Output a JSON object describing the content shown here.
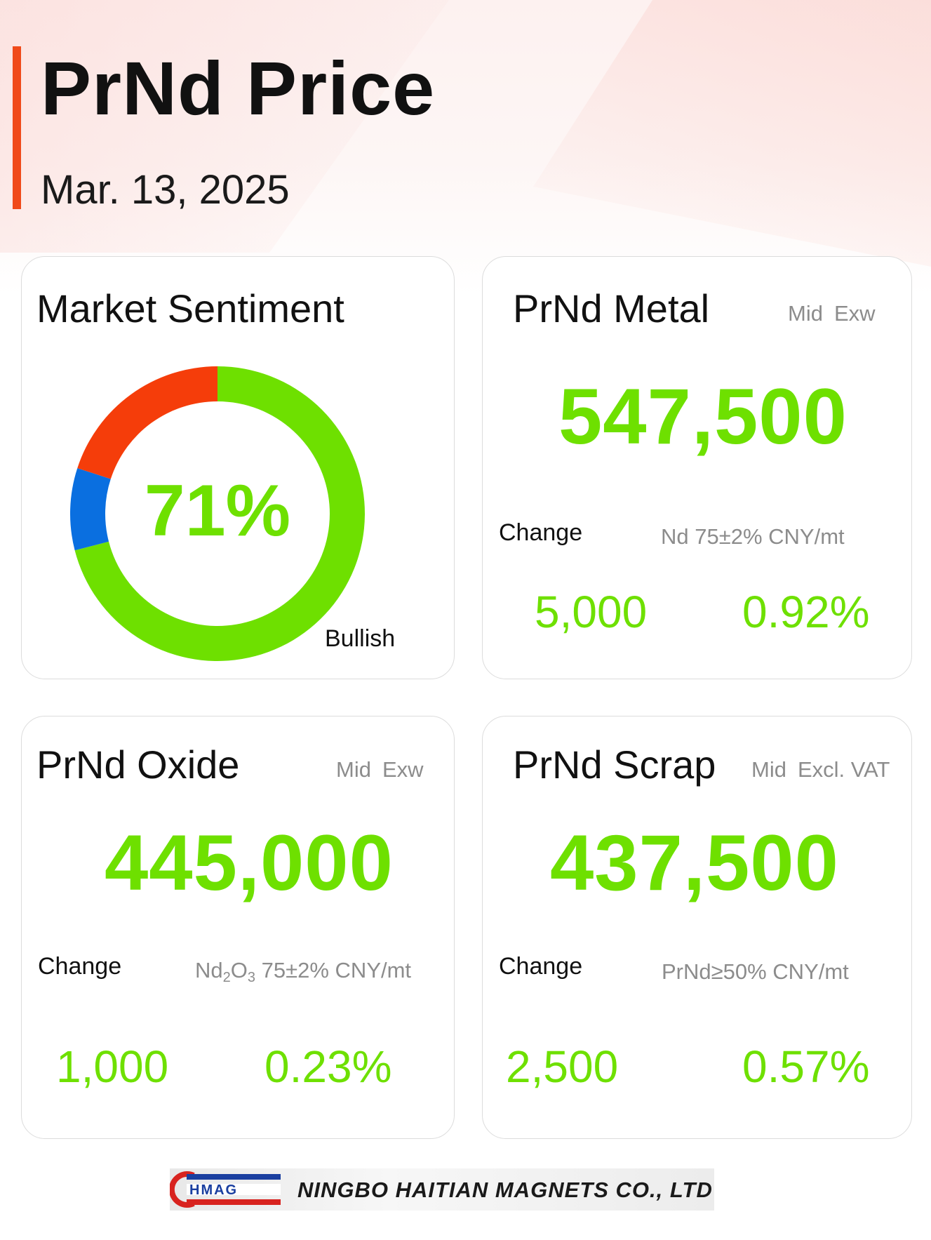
{
  "header": {
    "title": "PrNd Price",
    "date": "Mar. 13, 2025",
    "accent_color": "#f04a1a"
  },
  "sentiment": {
    "title": "Market Sentiment",
    "percent_label": "71%",
    "label": "Bullish",
    "chart_data": {
      "type": "pie",
      "donut": true,
      "slices": [
        {
          "value": 71,
          "color": "#6ee000"
        },
        {
          "value": 9,
          "color": "#0a6fe0"
        },
        {
          "value": 20,
          "color": "#f53d0a"
        }
      ]
    }
  },
  "metal": {
    "title": "PrNd Metal",
    "tag1": "Mid",
    "tag2": "Exw",
    "price": "547,500",
    "change_label": "Change",
    "spec": "Nd 75±2% CNY/mt",
    "change_abs": "5,000",
    "change_pct": "0.92%"
  },
  "oxide": {
    "title": "PrNd Oxide",
    "tag1": "Mid",
    "tag2": "Exw",
    "price": "445,000",
    "change_label": "Change",
    "spec_base": "Nd",
    "spec_sub1": "2",
    "spec_o": "O",
    "spec_sub2": "3",
    "spec_rest": " 75±2% CNY/mt",
    "change_abs": "1,000",
    "change_pct": "0.23%"
  },
  "scrap": {
    "title": "PrNd Scrap",
    "tag1": "Mid",
    "tag2": "Excl. VAT",
    "price": "437,500",
    "change_label": "Change",
    "spec": "PrNd≥50% CNY/mt",
    "change_abs": "2,500",
    "change_pct": "0.57%"
  },
  "footer": {
    "logo_letters": "HMAG",
    "company": "NINGBO HAITIAN MAGNETS CO., LTD"
  },
  "colors": {
    "positive_green": "#6ee000",
    "logo_blue": "#1a3fa0",
    "logo_red": "#d8231f"
  }
}
